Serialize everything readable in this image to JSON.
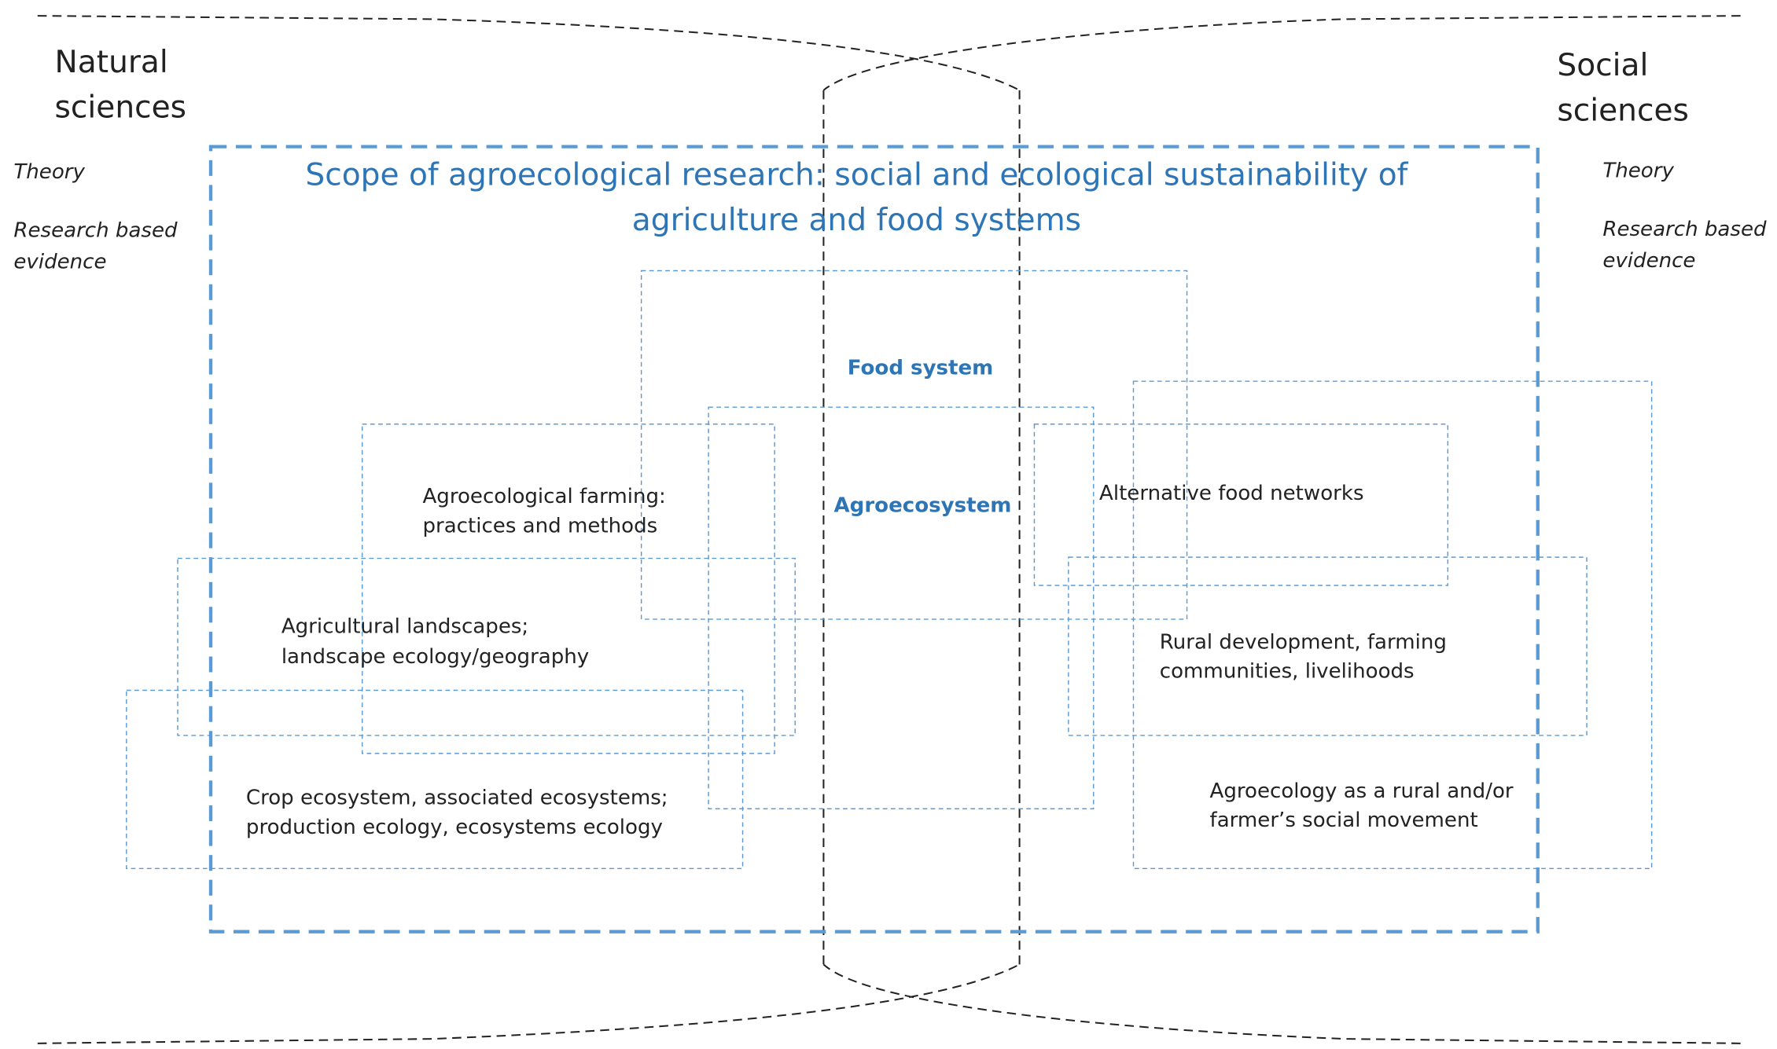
{
  "left": {
    "heading": [
      "Natural",
      "sciences"
    ],
    "theory": "Theory",
    "evidence": [
      "Research based",
      "evidence"
    ]
  },
  "right": {
    "heading": [
      "Social",
      "sciences"
    ],
    "theory": "Theory",
    "evidence": [
      "Research based",
      "evidence"
    ]
  },
  "scope": {
    "title": [
      "Scope of agroecological research: social and ecological sustainability of",
      "agriculture and food systems"
    ]
  },
  "nodes": [
    {
      "label": [
        "Food system"
      ]
    },
    {
      "label": [
        "Agroecosystem"
      ]
    },
    {
      "label": [
        "Agroecological farming:",
        "practices and methods"
      ]
    },
    {
      "label": [
        "Agricultural landscapes;",
        "landscape ecology/geography"
      ]
    },
    {
      "label": [
        "Crop ecosystem, associated ecosystems;",
        "production  ecology, ecosystems ecology"
      ]
    },
    {
      "label": [
        "Alternative food networks"
      ]
    },
    {
      "label": [
        "Rural development,  farming",
        "communities,  livelihoods"
      ]
    },
    {
      "label": [
        "Agroecology as a rural and/or",
        "farmer’s social  movement"
      ]
    }
  ]
}
